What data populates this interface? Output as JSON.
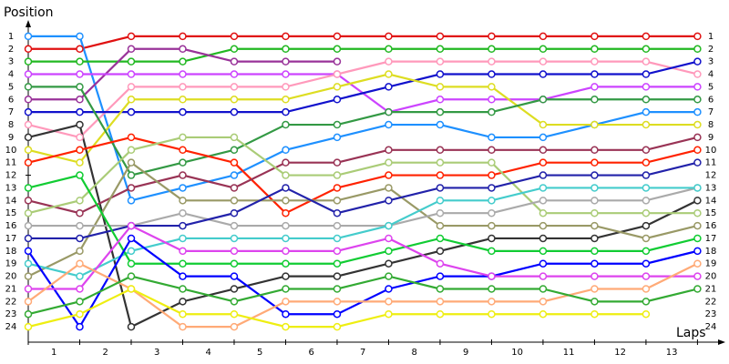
{
  "chart_data": {
    "type": "line",
    "y_label": "Position",
    "x_label": "Laps",
    "x": [
      0,
      1,
      2,
      3,
      4,
      5,
      6,
      7,
      8,
      9,
      10,
      11,
      12,
      13
    ],
    "xlim": [
      0,
      13.4
    ],
    "xticks": [
      {
        "value": 0.5,
        "label": "1"
      },
      {
        "value": 1.5,
        "label": "2"
      },
      {
        "value": 2.5,
        "label": "3"
      },
      {
        "value": 3.5,
        "label": "4"
      },
      {
        "value": 4.5,
        "label": "5"
      },
      {
        "value": 5.5,
        "label": "6"
      },
      {
        "value": 6.5,
        "label": "7"
      },
      {
        "value": 7.5,
        "label": "8"
      },
      {
        "value": 8.5,
        "label": "9"
      },
      {
        "value": 9.5,
        "label": "10"
      },
      {
        "value": 10.5,
        "label": "11"
      },
      {
        "value": 11.5,
        "label": "12"
      },
      {
        "value": 12.5,
        "label": "13"
      }
    ],
    "ylim": [
      25,
      0
    ],
    "yticks": [
      1,
      2,
      3,
      4,
      5,
      6,
      7,
      8,
      9,
      10,
      11,
      12,
      13,
      14,
      15,
      16,
      17,
      18,
      19,
      20,
      21,
      22,
      23,
      24
    ],
    "series": [
      {
        "color": "#e01010",
        "values": [
          2,
          2,
          1,
          1,
          1,
          1,
          1,
          1,
          1,
          1,
          1,
          1,
          1,
          1
        ]
      },
      {
        "color": "#1e90ff",
        "values": [
          1,
          1,
          14,
          13,
          12,
          10,
          9,
          8,
          8,
          9,
          9,
          8,
          7,
          7
        ]
      },
      {
        "color": "#22b822",
        "values": [
          3,
          3,
          3,
          3,
          2,
          2,
          2,
          2,
          2,
          2,
          2,
          2,
          2,
          2
        ]
      },
      {
        "color": "#993399",
        "values": [
          6,
          6,
          2,
          2,
          3,
          3,
          3,
          null,
          null,
          null,
          null,
          null,
          null,
          null
        ]
      },
      {
        "color": "#cc44ff",
        "values": [
          4,
          4,
          4,
          4,
          4,
          4,
          4,
          7,
          6,
          6,
          6,
          5,
          5,
          5
        ]
      },
      {
        "color": "#ff99bb",
        "values": [
          8,
          9,
          5,
          5,
          5,
          5,
          4,
          3,
          3,
          3,
          3,
          3,
          3,
          4
        ]
      },
      {
        "color": "#1111cc",
        "values": [
          7,
          7,
          7,
          7,
          7,
          7,
          6,
          5,
          4,
          4,
          4,
          4,
          4,
          3
        ]
      },
      {
        "color": "#dddd22",
        "values": [
          10,
          11,
          6,
          6,
          6,
          6,
          5,
          4,
          5,
          5,
          8,
          8,
          8,
          8
        ]
      },
      {
        "color": "#339944",
        "values": [
          5,
          5,
          12,
          11,
          10,
          8,
          8,
          7,
          7,
          7,
          6,
          6,
          6,
          6
        ]
      },
      {
        "color": "#333333",
        "values": [
          9,
          8,
          24,
          22,
          21,
          20,
          20,
          19,
          18,
          17,
          17,
          17,
          16,
          14
        ]
      },
      {
        "color": "#ff2200",
        "values": [
          11,
          10,
          9,
          10,
          11,
          15,
          13,
          12,
          12,
          12,
          11,
          11,
          11,
          10
        ]
      },
      {
        "color": "#993355",
        "values": [
          14,
          15,
          13,
          12,
          13,
          11,
          11,
          10,
          10,
          10,
          10,
          10,
          10,
          9
        ]
      },
      {
        "color": "#aacc77",
        "values": [
          15,
          14,
          10,
          9,
          9,
          12,
          12,
          11,
          11,
          11,
          15,
          15,
          15,
          15
        ]
      },
      {
        "color": "#999966",
        "values": [
          20,
          18,
          11,
          14,
          14,
          14,
          14,
          13,
          16,
          16,
          16,
          16,
          17,
          16
        ]
      },
      {
        "color": "#aaaaaa",
        "values": [
          16,
          16,
          16,
          15,
          16,
          16,
          16,
          16,
          15,
          15,
          14,
          14,
          14,
          13
        ]
      },
      {
        "color": "#2222aa",
        "values": [
          17,
          17,
          16,
          16,
          15,
          13,
          15,
          14,
          13,
          13,
          12,
          12,
          12,
          11
        ]
      },
      {
        "color": "#44cccc",
        "values": [
          19,
          20,
          18,
          17,
          17,
          17,
          17,
          16,
          14,
          14,
          13,
          13,
          13,
          13
        ]
      },
      {
        "color": "#11cc33",
        "values": [
          13,
          12,
          19,
          19,
          19,
          19,
          19,
          18,
          17,
          18,
          18,
          18,
          18,
          17
        ]
      },
      {
        "color": "#0000ff",
        "values": [
          18,
          24,
          17,
          20,
          20,
          23,
          23,
          21,
          20,
          20,
          19,
          19,
          19,
          18
        ]
      },
      {
        "color": "#dd44ee",
        "values": [
          21,
          21,
          16,
          18,
          18,
          18,
          18,
          17,
          19,
          20,
          20,
          20,
          20,
          20
        ]
      },
      {
        "color": "#ffaa77",
        "values": [
          22,
          19,
          21,
          24,
          24,
          22,
          22,
          22,
          22,
          22,
          22,
          21,
          21,
          19
        ]
      },
      {
        "color": "#33aa33",
        "values": [
          23,
          22,
          20,
          21,
          22,
          21,
          21,
          20,
          21,
          21,
          21,
          22,
          22,
          21
        ]
      },
      {
        "color": "#eeee11",
        "values": [
          24,
          23,
          21,
          23,
          23,
          24,
          24,
          23,
          23,
          23,
          23,
          23,
          23,
          null
        ]
      }
    ]
  }
}
